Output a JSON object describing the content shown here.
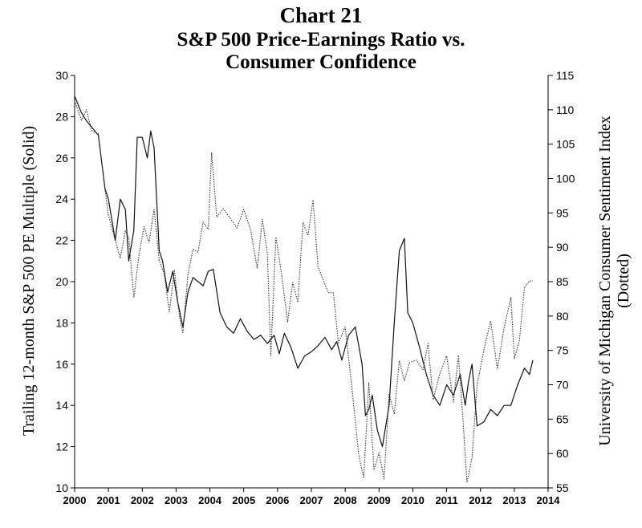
{
  "title_lines": [
    "Chart 21",
    "S&P 500 Price-Earnings Ratio vs.",
    "Consumer Confidence"
  ],
  "chart_data": {
    "type": "line",
    "title": "Chart 21 S&P 500 Price-Earnings Ratio vs. Consumer Confidence",
    "xlabel": "",
    "ylabel": "Trailing 12-month S&P 500 PE Multiple (Solid)",
    "y2label_lines": [
      "University of Michigan Consumer Sentiment Index",
      "(Dotted)"
    ],
    "xlim": [
      2000,
      2014
    ],
    "ylim": [
      10,
      30
    ],
    "y2lim": [
      55,
      115
    ],
    "x_ticks": [
      2000,
      2001,
      2002,
      2003,
      2004,
      2005,
      2006,
      2007,
      2008,
      2009,
      2010,
      2011,
      2012,
      2013,
      2014
    ],
    "y_ticks": [
      10,
      12,
      14,
      16,
      18,
      20,
      22,
      24,
      26,
      28,
      30
    ],
    "y2_ticks": [
      55,
      60,
      65,
      70,
      75,
      80,
      85,
      90,
      95,
      100,
      105,
      110,
      115
    ],
    "series": [
      {
        "name": "Trailing 12-month S&P 500 PE Multiple",
        "axis": "left",
        "style": "solid",
        "x": [
          2000.0,
          2000.2,
          2000.35,
          2000.5,
          2000.7,
          2000.9,
          2001.0,
          2001.2,
          2001.35,
          2001.5,
          2001.6,
          2001.75,
          2001.85,
          2002.0,
          2002.15,
          2002.25,
          2002.35,
          2002.5,
          2002.6,
          2002.75,
          2002.9,
          2003.05,
          2003.2,
          2003.35,
          2003.5,
          2003.65,
          2003.8,
          2003.95,
          2004.1,
          2004.3,
          2004.5,
          2004.7,
          2004.9,
          2005.1,
          2005.3,
          2005.5,
          2005.7,
          2005.9,
          2006.05,
          2006.2,
          2006.4,
          2006.6,
          2006.8,
          2007.0,
          2007.2,
          2007.4,
          2007.6,
          2007.75,
          2007.9,
          2008.1,
          2008.3,
          2008.5,
          2008.6,
          2008.7,
          2008.8,
          2008.95,
          2009.1,
          2009.3,
          2009.45,
          2009.6,
          2009.75,
          2009.85,
          2010.0,
          2010.2,
          2010.4,
          2010.6,
          2010.8,
          2011.0,
          2011.2,
          2011.4,
          2011.55,
          2011.65,
          2011.75,
          2011.9,
          2012.1,
          2012.3,
          2012.5,
          2012.7,
          2012.9,
          2013.1,
          2013.3,
          2013.45,
          2013.55
        ],
        "values": [
          29.0,
          28.2,
          27.8,
          27.5,
          27.1,
          24.5,
          24.0,
          22.0,
          24.0,
          23.5,
          21.0,
          22.5,
          27.0,
          27.0,
          26.0,
          27.3,
          26.5,
          21.5,
          21.0,
          19.5,
          20.5,
          19.0,
          17.8,
          19.5,
          20.2,
          20.0,
          19.8,
          20.5,
          20.6,
          18.5,
          17.8,
          17.5,
          18.2,
          17.6,
          17.2,
          17.4,
          17.0,
          17.4,
          16.5,
          17.5,
          16.8,
          15.8,
          16.4,
          16.6,
          16.9,
          17.3,
          16.7,
          17.1,
          16.2,
          17.4,
          17.8,
          16.0,
          13.5,
          13.8,
          14.5,
          12.8,
          12.0,
          14.0,
          18.0,
          21.5,
          22.1,
          18.5,
          18.0,
          16.8,
          15.5,
          14.5,
          14.0,
          15.0,
          14.5,
          15.5,
          14.0,
          15.2,
          16.0,
          13.0,
          13.2,
          13.8,
          13.5,
          14.0,
          14.0,
          15.0,
          15.8,
          15.5,
          16.2
        ]
      },
      {
        "name": "University of Michigan Consumer Sentiment Index",
        "axis": "right",
        "style": "dotted",
        "x": [
          2000.0,
          2000.2,
          2000.35,
          2000.5,
          2000.7,
          2000.9,
          2001.0,
          2001.2,
          2001.35,
          2001.5,
          2001.6,
          2001.75,
          2001.9,
          2002.05,
          2002.2,
          2002.35,
          2002.5,
          2002.65,
          2002.8,
          2002.95,
          2003.1,
          2003.2,
          2003.35,
          2003.5,
          2003.65,
          2003.8,
          2003.95,
          2004.05,
          2004.2,
          2004.4,
          2004.6,
          2004.8,
          2005.0,
          2005.2,
          2005.4,
          2005.55,
          2005.7,
          2005.8,
          2005.95,
          2006.1,
          2006.3,
          2006.45,
          2006.6,
          2006.75,
          2006.9,
          2007.05,
          2007.2,
          2007.35,
          2007.5,
          2007.65,
          2007.8,
          2008.0,
          2008.2,
          2008.4,
          2008.55,
          2008.7,
          2008.85,
          2009.0,
          2009.15,
          2009.3,
          2009.45,
          2009.6,
          2009.75,
          2009.9,
          2010.1,
          2010.3,
          2010.45,
          2010.6,
          2010.8,
          2011.0,
          2011.2,
          2011.35,
          2011.5,
          2011.6,
          2011.75,
          2011.9,
          2012.1,
          2012.3,
          2012.5,
          2012.7,
          2012.9,
          2013.0,
          2013.15,
          2013.3,
          2013.45,
          2013.55
        ],
        "values": [
          111.3,
          108.5,
          110.0,
          107.0,
          106.5,
          98.4,
          94.7,
          91.0,
          88.4,
          92.4,
          91.5,
          82.7,
          88.8,
          93.0,
          90.7,
          95.5,
          88.1,
          86.1,
          80.6,
          86.7,
          79.9,
          77.6,
          86.0,
          89.7,
          89.3,
          93.7,
          92.6,
          103.8,
          94.4,
          95.6,
          94.2,
          92.8,
          95.5,
          92.6,
          86.9,
          94.1,
          89.1,
          74.2,
          91.5,
          86.7,
          79.1,
          84.9,
          82.0,
          93.6,
          91.7,
          96.9,
          87.1,
          85.3,
          83.4,
          83.4,
          76.1,
          78.4,
          69.5,
          59.8,
          56.4,
          70.3,
          57.6,
          60.1,
          56.3,
          68.7,
          65.7,
          73.5,
          70.6,
          73.2,
          73.6,
          72.2,
          76.0,
          67.8,
          71.6,
          74.2,
          67.5,
          74.3,
          63.7,
          55.8,
          59.4,
          69.9,
          75.0,
          79.3,
          72.3,
          78.3,
          82.7,
          73.8,
          76.4,
          84.1,
          85.1,
          85.1
        ]
      }
    ],
    "grid": false,
    "legend": "none"
  }
}
